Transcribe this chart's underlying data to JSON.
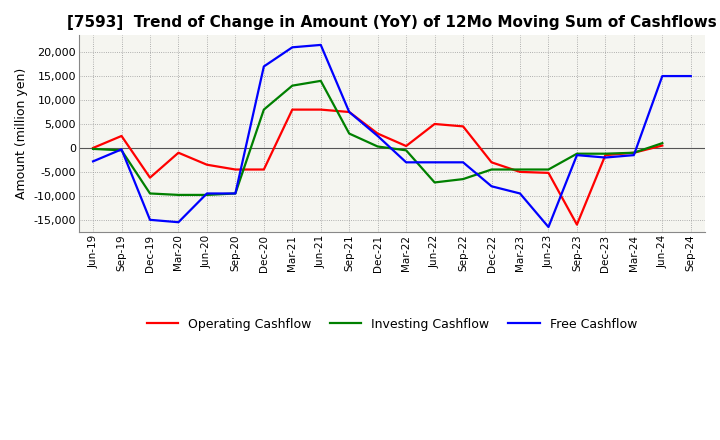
{
  "title": "[7593]  Trend of Change in Amount (YoY) of 12Mo Moving Sum of Cashflows",
  "ylabel": "Amount (million yen)",
  "x_labels": [
    "Jun-19",
    "Sep-19",
    "Dec-19",
    "Mar-20",
    "Jun-20",
    "Sep-20",
    "Dec-20",
    "Mar-21",
    "Jun-21",
    "Sep-21",
    "Dec-21",
    "Mar-22",
    "Jun-22",
    "Sep-22",
    "Dec-22",
    "Mar-23",
    "Jun-23",
    "Sep-23",
    "Dec-23",
    "Mar-24",
    "Jun-24",
    "Sep-24"
  ],
  "operating": [
    0,
    2500,
    -6200,
    -1000,
    -3500,
    -4500,
    -4500,
    8000,
    8000,
    7500,
    3000,
    400,
    5000,
    4500,
    -3000,
    -5000,
    -5200,
    -16000,
    -1500,
    -1000,
    500,
    null
  ],
  "investing": [
    -200,
    -500,
    -9500,
    -9800,
    -9800,
    -9500,
    8000,
    13000,
    14000,
    3000,
    300,
    -500,
    -7200,
    -6500,
    -4500,
    -4500,
    -4500,
    -1200,
    -1200,
    -1000,
    1000,
    null
  ],
  "free": [
    -2800,
    -300,
    -15000,
    -15500,
    -9500,
    -9500,
    17000,
    21000,
    21500,
    7500,
    2500,
    -3000,
    -3000,
    -3000,
    -8000,
    -9500,
    -16500,
    -1500,
    -2000,
    -1500,
    15000,
    15000
  ],
  "colors": {
    "operating": "#ff0000",
    "investing": "#008000",
    "free": "#0000ff"
  },
  "ylim": [
    -17500,
    23500
  ],
  "yticks": [
    -15000,
    -10000,
    -5000,
    0,
    5000,
    10000,
    15000,
    20000
  ],
  "bg_color": "#ffffff",
  "plot_bg": "#f5f5f0",
  "grid_color": "#999999",
  "legend_labels": [
    "Operating Cashflow",
    "Investing Cashflow",
    "Free Cashflow"
  ]
}
